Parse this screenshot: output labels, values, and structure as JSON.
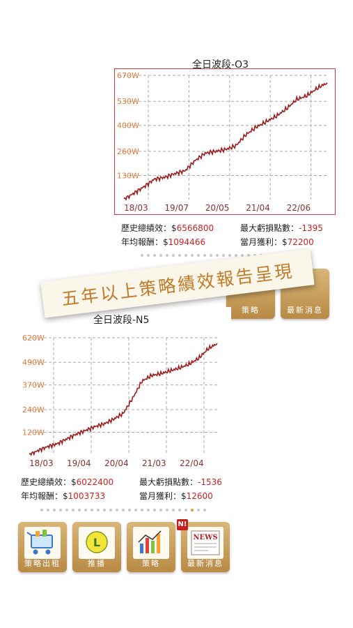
{
  "top_card": {
    "title": "全日波段-O3",
    "stats": {
      "total_label": "歷史總績效：$",
      "total_value": "6566800",
      "drawdown_label": "最大虧損點數：",
      "drawdown_value": "-1395",
      "annual_label": "年均報酬：$",
      "annual_value": "1094466",
      "month_label": "當月獲利：$",
      "month_value": "72200"
    }
  },
  "bottom_card": {
    "title": "全日波段-N5",
    "stats": {
      "total_label": "歷史總績效：$",
      "total_value": "6022400",
      "drawdown_label": "最大虧損點數：",
      "drawdown_value": "-1536",
      "annual_label": "年均報酬：$",
      "annual_value": "1003733",
      "month_label": "當月獲利：$",
      "month_value": "12600"
    }
  },
  "banner": {
    "text": "五年以上策略績效報告呈現"
  },
  "tiles_bottom": [
    {
      "label": "策略出租",
      "icon": "cart-icon"
    },
    {
      "label": "推播",
      "icon": "line-icon"
    },
    {
      "label": "策略",
      "icon": "chart-icon"
    },
    {
      "label": "最新消息",
      "icon": "news-icon",
      "badge": "N!"
    }
  ],
  "tiles_top": [
    {
      "label": "策略"
    },
    {
      "label": "最新消息"
    }
  ],
  "icon_texts": {
    "line": "L",
    "news": "NEWS"
  },
  "colors": {
    "accent": "#d7a040",
    "series": "#9b1c1c",
    "value": "#d02020",
    "frame": "#d23c3c"
  },
  "chart_data": [
    {
      "type": "line",
      "title": "全日波段-O3",
      "x_ticks": [
        "18/03",
        "19/07",
        "20/05",
        "21/04",
        "22/06"
      ],
      "y_ticks": [
        "130W",
        "260W",
        "400W",
        "530W",
        "670W"
      ],
      "y_tick_values": [
        130,
        260,
        400,
        530,
        670
      ],
      "ylim": [
        0,
        670
      ],
      "x": [
        0,
        0.05,
        0.1,
        0.15,
        0.2,
        0.25,
        0.3,
        0.35,
        0.4,
        0.45,
        0.5,
        0.55,
        0.6,
        0.65,
        0.7,
        0.75,
        0.8,
        0.85,
        0.9,
        0.95,
        1.0
      ],
      "y": [
        0,
        35,
        70,
        110,
        120,
        140,
        155,
        210,
        250,
        260,
        270,
        290,
        350,
        390,
        420,
        450,
        490,
        540,
        560,
        600,
        630
      ],
      "grid": true
    },
    {
      "type": "line",
      "title": "全日波段-N5",
      "x_ticks": [
        "18/03",
        "19/04",
        "20/04",
        "21/03",
        "22/04"
      ],
      "y_ticks": [
        "120W",
        "240W",
        "370W",
        "490W",
        "620W"
      ],
      "y_tick_values": [
        120,
        240,
        370,
        490,
        620
      ],
      "ylim": [
        0,
        620
      ],
      "x": [
        0,
        0.05,
        0.1,
        0.15,
        0.2,
        0.25,
        0.3,
        0.35,
        0.4,
        0.45,
        0.5,
        0.55,
        0.6,
        0.65,
        0.7,
        0.75,
        0.8,
        0.85,
        0.9,
        0.95,
        1.0
      ],
      "y": [
        0,
        25,
        45,
        60,
        85,
        110,
        130,
        150,
        165,
        190,
        220,
        300,
        390,
        420,
        430,
        445,
        460,
        480,
        510,
        560,
        590
      ],
      "grid": true
    }
  ]
}
